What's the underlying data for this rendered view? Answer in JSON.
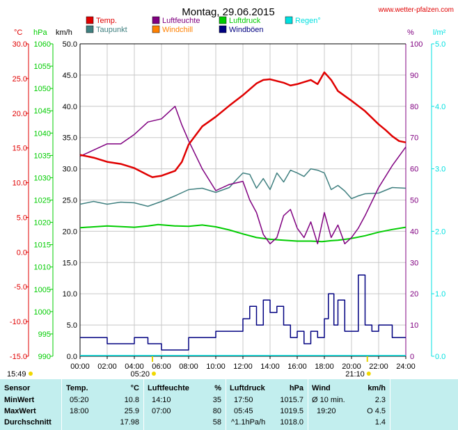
{
  "chart_data": {
    "type": "line",
    "title": "Montag, 29.06.2015",
    "watermark": "www.wetter-pfalzen.com",
    "legend": [
      {
        "label": "Temp.",
        "color": "#e00000"
      },
      {
        "label": "Luftfeuchte",
        "color": "#800080"
      },
      {
        "label": "Luftdruck",
        "color": "#00cc00"
      },
      {
        "label": "Regen°",
        "color": "#00e0e0"
      },
      {
        "label": "Taupunkt",
        "color": "#408080"
      },
      {
        "label": "Windchill",
        "color": "#ff8000"
      },
      {
        "label": "Windböen",
        "color": "#000080"
      }
    ],
    "axes": {
      "temp": {
        "unit": "°C",
        "color": "#e00000",
        "ticks": [
          "30.0",
          "25.0",
          "20.0",
          "15.0",
          "10.0",
          "5.0",
          "0.0",
          "-5.0",
          "-10.0",
          "-15.0"
        ]
      },
      "pressure": {
        "unit": "hPa",
        "color": "#00cc00",
        "ticks": [
          "1060",
          "1055",
          "1050",
          "1045",
          "1040",
          "1035",
          "1030",
          "1025",
          "1020",
          "1015",
          "1010",
          "1005",
          "1000",
          "995",
          "990"
        ]
      },
      "wind_speed": {
        "unit": "km/h",
        "color": "#000000",
        "ticks": [
          "50.0",
          "45.0",
          "40.0",
          "35.0",
          "30.0",
          "25.0",
          "20.0",
          "15.0",
          "10.0",
          "5.0",
          "0.0"
        ]
      },
      "humidity": {
        "unit": "%",
        "color": "#800080",
        "ticks": [
          "100",
          "90",
          "80",
          "70",
          "60",
          "50",
          "40",
          "30",
          "20",
          "10",
          "0"
        ]
      },
      "rain": {
        "unit": "l/m²",
        "color": "#00e0e0",
        "ticks": [
          "5.0",
          "4.0",
          "3.0",
          "2.0",
          "1.0",
          "0.0"
        ]
      },
      "time": {
        "ticks": [
          "00:00",
          "02:00",
          "04:00",
          "06:00",
          "08:00",
          "10:00",
          "12:00",
          "14:00",
          "16:00",
          "18:00",
          "20:00",
          "22:00",
          "24:00"
        ]
      }
    },
    "markers": {
      "now": "15:49",
      "sunrise": "05:20",
      "sunset": "21:10"
    },
    "series": [
      {
        "name": "Temp.",
        "axis": "temp",
        "color": "#e00000",
        "hours": [
          0,
          1,
          2,
          3,
          4,
          5,
          5.33,
          6,
          7,
          7.5,
          8,
          9,
          10,
          11,
          12,
          13,
          13.5,
          14,
          15,
          15.5,
          16,
          17,
          17.5,
          18,
          18.5,
          19,
          20,
          21,
          22,
          22.5,
          23,
          23.5,
          24
        ],
        "values": [
          14.0,
          13.6,
          13.0,
          12.7,
          12.1,
          11.1,
          10.8,
          11.0,
          11.7,
          13.0,
          15.5,
          18.1,
          19.5,
          21.1,
          22.6,
          24.3,
          24.8,
          24.9,
          24.4,
          24.0,
          24.2,
          24.8,
          24.2,
          25.9,
          24.8,
          23.2,
          21.8,
          20.3,
          18.4,
          17.6,
          16.7,
          16.0,
          15.8
        ]
      },
      {
        "name": "Taupunkt",
        "axis": "temp",
        "color": "#408080",
        "hours": [
          0,
          1,
          2,
          3,
          4,
          5,
          6,
          7,
          8,
          9,
          10,
          11,
          11.5,
          12,
          12.5,
          13,
          13.5,
          14,
          14.5,
          15,
          15.5,
          16,
          16.5,
          17,
          17.5,
          18,
          18.5,
          19,
          19.5,
          20,
          20.5,
          21,
          22,
          23,
          24
        ],
        "values": [
          6.9,
          7.3,
          6.9,
          7.2,
          7.1,
          6.6,
          7.3,
          8.1,
          9.0,
          9.2,
          8.6,
          9.3,
          10.4,
          11.4,
          11.2,
          9.2,
          10.6,
          9.0,
          11.4,
          10.1,
          11.8,
          11.4,
          10.9,
          12.0,
          11.8,
          11.4,
          9.0,
          9.6,
          8.8,
          7.7,
          8.1,
          8.4,
          8.5,
          9.3,
          9.2
        ]
      },
      {
        "name": "Luftfeuchte",
        "axis": "humidity",
        "color": "#800080",
        "hours": [
          0,
          1,
          2,
          3,
          4,
          5,
          6,
          7,
          7.5,
          8,
          9,
          10,
          11,
          12,
          12.5,
          13,
          13.5,
          14,
          14.5,
          15,
          15.5,
          16,
          16.5,
          17,
          17.5,
          18,
          18.5,
          19,
          19.5,
          20,
          20.5,
          21,
          22,
          23,
          24
        ],
        "values": [
          64,
          66,
          68,
          68,
          71,
          75,
          76,
          80,
          74,
          69,
          60,
          53,
          55,
          56,
          50,
          46,
          39,
          36,
          38,
          45,
          47,
          41,
          38,
          43,
          36,
          46,
          38,
          42,
          36,
          38,
          41,
          45,
          54,
          61,
          67
        ]
      },
      {
        "name": "Luftdruck",
        "axis": "pressure",
        "color": "#00cc00",
        "hours": [
          0,
          2,
          4,
          5,
          5.75,
          7,
          8,
          9,
          10,
          11,
          12,
          13,
          14,
          15,
          16,
          17,
          17.83,
          18.5,
          19,
          20,
          21,
          22,
          23,
          24
        ],
        "values": [
          1018.8,
          1019.2,
          1018.9,
          1019.2,
          1019.5,
          1019.2,
          1019.1,
          1019.4,
          1019.0,
          1018.3,
          1017.4,
          1016.6,
          1016.2,
          1016.0,
          1015.8,
          1015.8,
          1015.7,
          1015.9,
          1016.0,
          1016.4,
          1017.0,
          1017.8,
          1018.4,
          1018.9
        ]
      },
      {
        "name": "Windböen",
        "axis": "wind_speed",
        "color": "#000080",
        "hours": [
          0,
          1,
          2,
          3,
          4,
          5,
          6,
          7,
          8,
          9,
          10,
          11,
          12,
          12.5,
          13,
          13.5,
          14,
          14.5,
          15,
          15.5,
          16,
          16.5,
          17,
          17.5,
          18,
          18.3,
          18.7,
          19,
          19.5,
          20,
          20.5,
          21,
          21.5,
          22,
          23,
          24
        ],
        "values": [
          3,
          3,
          2,
          2,
          3,
          2,
          1,
          1,
          3,
          3,
          4,
          4,
          6,
          8,
          5,
          9,
          7,
          8,
          5,
          3,
          4,
          2,
          4,
          3,
          6,
          10,
          5,
          9,
          4,
          4,
          13,
          5,
          4,
          5,
          3,
          3
        ]
      }
    ]
  },
  "stats": {
    "header": {
      "sensor": "Sensor",
      "temp": "Temp.",
      "temp_unit": "°C",
      "humidity": "Luftfeuchte",
      "humidity_unit": "%",
      "pressure": "Luftdruck",
      "pressure_unit": "hPa",
      "wind": "Wind",
      "wind_unit": "km/h"
    },
    "min": {
      "label": "MinWert",
      "temp_time": "05:20",
      "temp_value": "10.8",
      "hum_time": "14:10",
      "hum_value": "35",
      "press_time": "17:50",
      "press_value": "1015.7",
      "wind_label": "Ø 10 min.",
      "wind_value": "2.3"
    },
    "max": {
      "label": "MaxWert",
      "temp_time": "18:00",
      "temp_value": "25.9",
      "hum_time": "07:00",
      "hum_value": "80",
      "press_time": "05:45",
      "press_value": "1019.5",
      "wind_time": "19:20",
      "wind_value": "O 4.5"
    },
    "avg": {
      "label": "Durchschnitt",
      "temp_value": "17.98",
      "hum_value": "58",
      "press_trend": "^1.1hPa/h",
      "press_value": "1018.0",
      "wind_value": "1.4"
    }
  }
}
